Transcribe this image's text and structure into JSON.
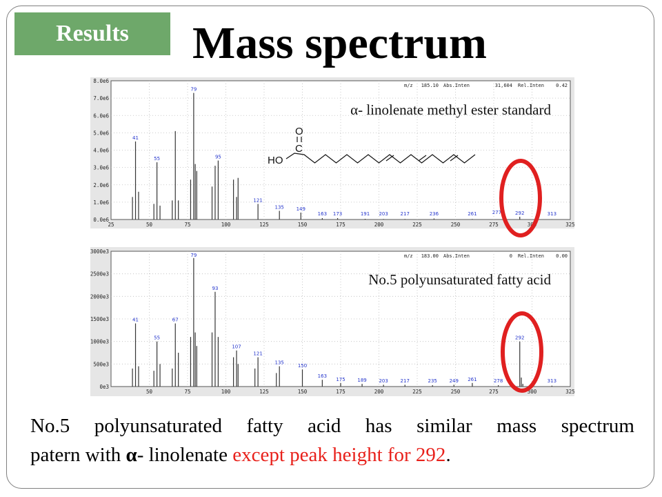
{
  "badge": "Results",
  "title": "Mass spectrum",
  "colors": {
    "badge": "#6ea86a",
    "highlight": "#e8211b",
    "plot_line": "#333333",
    "peak_label": "#2233cc",
    "circle": "#e02020"
  },
  "chart_data": [
    {
      "type": "bar",
      "inset_label": "α- linolenate methyl ester standard",
      "header": {
        "mz_label": "m/z",
        "mz": "185.10",
        "abs_label": "Abs.Inten",
        "abs": "31,604",
        "rel_label": "Rel.Inten",
        "rel": "0.42"
      },
      "xlim": [
        25,
        325
      ],
      "xticks": [
        "25",
        "50",
        "75",
        "100",
        "125",
        "150",
        "175",
        "200",
        "225",
        "250",
        "275",
        "300",
        "325"
      ],
      "ylim": [
        0,
        8000000
      ],
      "yticks": [
        "0.0e6",
        "1.0e6",
        "2.0e6",
        "3.0e6",
        "4.0e6",
        "5.0e6",
        "6.0e6",
        "7.0e6",
        "8.0e6"
      ],
      "peaks": [
        {
          "x": 39,
          "y": 1300000
        },
        {
          "x": 41,
          "y": 4500000
        },
        {
          "x": 43,
          "y": 1600000
        },
        {
          "x": 53,
          "y": 900000
        },
        {
          "x": 55,
          "y": 3300000
        },
        {
          "x": 57,
          "y": 800000
        },
        {
          "x": 65,
          "y": 1100000
        },
        {
          "x": 67,
          "y": 5100000
        },
        {
          "x": 69,
          "y": 1100000
        },
        {
          "x": 77,
          "y": 2300000
        },
        {
          "x": 79,
          "y": 7300000
        },
        {
          "x": 80,
          "y": 3200000
        },
        {
          "x": 81,
          "y": 2800000
        },
        {
          "x": 91,
          "y": 1900000
        },
        {
          "x": 93,
          "y": 3100000
        },
        {
          "x": 95,
          "y": 3400000
        },
        {
          "x": 105,
          "y": 2300000
        },
        {
          "x": 107,
          "y": 1300000
        },
        {
          "x": 108,
          "y": 2400000
        },
        {
          "x": 121,
          "y": 900000
        },
        {
          "x": 135,
          "y": 500000
        },
        {
          "x": 149,
          "y": 400000
        },
        {
          "x": 163,
          "y": 80000
        },
        {
          "x": 173,
          "y": 80000
        },
        {
          "x": 191,
          "y": 40000
        },
        {
          "x": 203,
          "y": 30000
        },
        {
          "x": 217,
          "y": 30000
        },
        {
          "x": 236,
          "y": 60000
        },
        {
          "x": 261,
          "y": 30000
        },
        {
          "x": 292,
          "y": 160000
        },
        {
          "x": 313,
          "y": 20000
        }
      ],
      "peak_labels": [
        {
          "x": 41,
          "text": "41"
        },
        {
          "x": 55,
          "text": "55"
        },
        {
          "x": 79,
          "text": "79"
        },
        {
          "x": 95,
          "text": "95"
        },
        {
          "x": 121,
          "text": "121"
        },
        {
          "x": 135,
          "text": "135"
        },
        {
          "x": 149,
          "text": "149"
        },
        {
          "x": 163,
          "text": "163"
        },
        {
          "x": 173,
          "text": "173"
        },
        {
          "x": 191,
          "text": "191"
        },
        {
          "x": 203,
          "text": "203"
        },
        {
          "x": 217,
          "text": "217"
        },
        {
          "x": 236,
          "text": "236"
        },
        {
          "x": 261,
          "text": "261"
        },
        {
          "x": 277,
          "text": "277"
        },
        {
          "x": 292,
          "text": "292"
        },
        {
          "x": 313,
          "text": "313"
        }
      ],
      "structure_labels": {
        "o": "O",
        "c": "C",
        "ho": "HO"
      }
    },
    {
      "type": "bar",
      "inset_label": "No.5 polyunsaturated fatty acid",
      "header": {
        "mz_label": "m/z",
        "mz": "183.00",
        "abs_label": "Abs.Inten",
        "abs": "0",
        "rel_label": "Rel.Inten",
        "rel": "0.00"
      },
      "xlim": [
        25,
        325
      ],
      "xticks": [
        "50",
        "75",
        "100",
        "125",
        "150",
        "175",
        "200",
        "225",
        "250",
        "275",
        "300",
        "325"
      ],
      "ylim": [
        0,
        3000000
      ],
      "yticks": [
        "0e3",
        "500e3",
        "1000e3",
        "1500e3",
        "2000e3",
        "2500e3",
        "3000e3"
      ],
      "peaks": [
        {
          "x": 39,
          "y": 400000
        },
        {
          "x": 41,
          "y": 1400000
        },
        {
          "x": 43,
          "y": 450000
        },
        {
          "x": 53,
          "y": 350000
        },
        {
          "x": 55,
          "y": 1000000
        },
        {
          "x": 57,
          "y": 500000
        },
        {
          "x": 65,
          "y": 400000
        },
        {
          "x": 67,
          "y": 1400000
        },
        {
          "x": 69,
          "y": 750000
        },
        {
          "x": 77,
          "y": 1100000
        },
        {
          "x": 79,
          "y": 2850000
        },
        {
          "x": 80,
          "y": 1200000
        },
        {
          "x": 81,
          "y": 900000
        },
        {
          "x": 91,
          "y": 1200000
        },
        {
          "x": 93,
          "y": 2100000
        },
        {
          "x": 95,
          "y": 1100000
        },
        {
          "x": 105,
          "y": 650000
        },
        {
          "x": 107,
          "y": 800000
        },
        {
          "x": 108,
          "y": 500000
        },
        {
          "x": 119,
          "y": 400000
        },
        {
          "x": 121,
          "y": 650000
        },
        {
          "x": 133,
          "y": 300000
        },
        {
          "x": 135,
          "y": 450000
        },
        {
          "x": 150,
          "y": 380000
        },
        {
          "x": 163,
          "y": 150000
        },
        {
          "x": 175,
          "y": 80000
        },
        {
          "x": 189,
          "y": 60000
        },
        {
          "x": 203,
          "y": 40000
        },
        {
          "x": 217,
          "y": 40000
        },
        {
          "x": 235,
          "y": 30000
        },
        {
          "x": 249,
          "y": 40000
        },
        {
          "x": 261,
          "y": 80000
        },
        {
          "x": 278,
          "y": 30000
        },
        {
          "x": 292,
          "y": 1000000
        },
        {
          "x": 293,
          "y": 200000
        },
        {
          "x": 294,
          "y": 60000
        },
        {
          "x": 313,
          "y": 20000
        }
      ],
      "peak_labels": [
        {
          "x": 41,
          "text": "41"
        },
        {
          "x": 55,
          "text": "55"
        },
        {
          "x": 67,
          "text": "67"
        },
        {
          "x": 79,
          "text": "79"
        },
        {
          "x": 93,
          "text": "93"
        },
        {
          "x": 107,
          "text": "107"
        },
        {
          "x": 121,
          "text": "121"
        },
        {
          "x": 135,
          "text": "135"
        },
        {
          "x": 150,
          "text": "150"
        },
        {
          "x": 163,
          "text": "163"
        },
        {
          "x": 175,
          "text": "175"
        },
        {
          "x": 189,
          "text": "189"
        },
        {
          "x": 203,
          "text": "203"
        },
        {
          "x": 217,
          "text": "217"
        },
        {
          "x": 235,
          "text": "235"
        },
        {
          "x": 249,
          "text": "249"
        },
        {
          "x": 261,
          "text": "261"
        },
        {
          "x": 278,
          "text": "278"
        },
        {
          "x": 292,
          "text": "292"
        },
        {
          "x": 313,
          "text": "313"
        }
      ]
    }
  ],
  "caption": {
    "line1": "No.5 polyunsaturated fatty acid has similar mass spectrum",
    "line2_pre": "patern with ",
    "line2_alpha": "α",
    "line2_mid": "- linolenate ",
    "line2_highlight": "except peak height for 292",
    "line2_end": "."
  }
}
